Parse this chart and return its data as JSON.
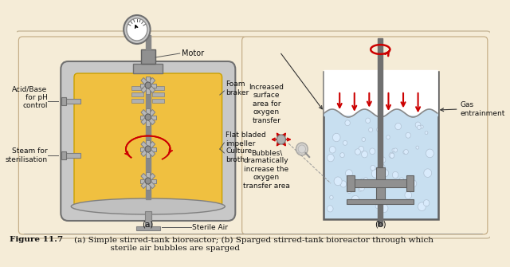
{
  "bg_color": "#f5ecd7",
  "panel_left_bg": "#f5ecd7",
  "panel_right_bg": "#f5ecd7",
  "tank_fill_left": "#f0c040",
  "tank_fill_right": "#c8dff0",
  "tank_shell": "#b0b0b0",
  "tank_dark": "#808080",
  "shaft_color": "#909090",
  "impeller_color": "#aaaaaa",
  "red_arrow": "#cc0000",
  "label_color": "#111111",
  "line_color": "#555555",
  "bubble_fill": "#ddeeff",
  "bubble_edge": "#aabbcc",
  "caption_fig": "Figure 11.7",
  "caption_rest": "(a) Simple stirred-tank bioreactor; (b) Sparged stirred-tank bioreactor through which\n              sterile air bubbles are sparged",
  "panel_a_label": "(a)",
  "panel_b_label": "(b)",
  "label_motor": "Motor",
  "label_foam": "Foam\nbraker",
  "label_flatblade": "Flat bladed\nimpeller",
  "label_culture": "Culture\nbroth",
  "label_acid": "Acid/Base\nfor pH\ncontrol",
  "label_steam": "Steam for\nsterilisation",
  "label_sterileair": "Sterile Air",
  "label_increased": "Increased\nsurface\narea for\noxygen\ntransfer",
  "label_bubbles": "Bubbles\\\ndramatically\nincrease the\noxygen\ntransfer area",
  "label_gas": "Gas\nentrainment"
}
